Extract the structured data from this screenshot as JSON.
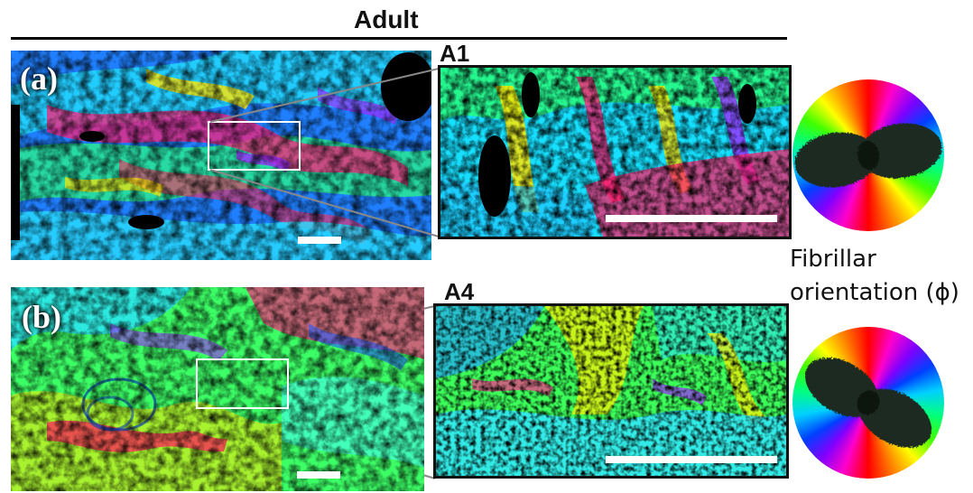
{
  "figure": {
    "title": "Adult",
    "panel_a": {
      "label": "(a)",
      "zoom_label": "A1"
    },
    "panel_b": {
      "label": "(b)",
      "zoom_label": "A4"
    },
    "legend": {
      "line1": "Fibrillar",
      "line2": "orientation (ϕ)"
    }
  },
  "colors": {
    "line": "#000000",
    "selection_box": "#ffffff",
    "scale_bar": "#ffffff",
    "map_palette": [
      "#00e5ff",
      "#1f5cff",
      "#33ff66",
      "#ffee00",
      "#ff1a6e",
      "#b000ff",
      "#000000"
    ]
  }
}
